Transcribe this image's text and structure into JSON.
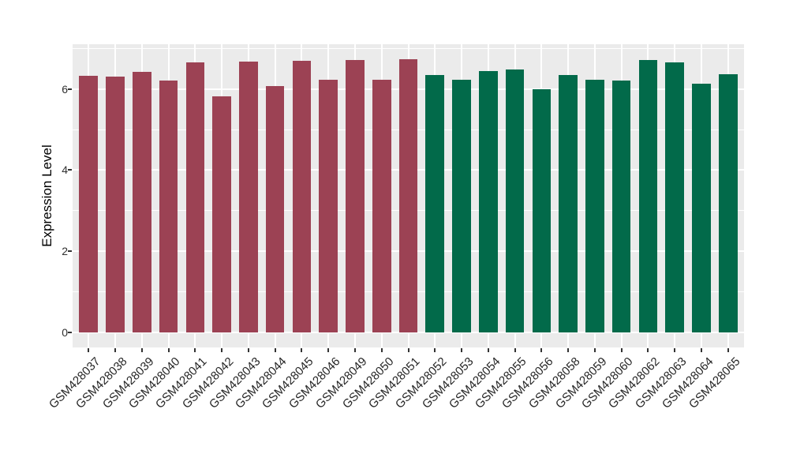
{
  "figure": {
    "background": "#FFFFFF"
  },
  "y_axis": {
    "label": "Expression Level",
    "tick_labels": [
      "0",
      "2",
      "4",
      "6"
    ]
  },
  "chart_data": {
    "type": "bar",
    "title": "",
    "xlabel": "",
    "ylabel": "Expression Level",
    "categories": [
      "GSM428037",
      "GSM428038",
      "GSM428039",
      "GSM428040",
      "GSM428041",
      "GSM428042",
      "GSM428043",
      "GSM428044",
      "GSM428045",
      "GSM428046",
      "GSM428049",
      "GSM428050",
      "GSM428051",
      "GSM428052",
      "GSM428053",
      "GSM428054",
      "GSM428055",
      "GSM428056",
      "GSM428058",
      "GSM428059",
      "GSM428060",
      "GSM428062",
      "GSM428063",
      "GSM428064",
      "GSM428065"
    ],
    "values": [
      6.33,
      6.31,
      6.42,
      6.2,
      6.65,
      5.82,
      6.67,
      6.07,
      6.7,
      6.23,
      6.72,
      6.23,
      6.74,
      6.34,
      6.23,
      6.45,
      6.48,
      5.99,
      6.34,
      6.22,
      6.2,
      6.71,
      6.66,
      6.12,
      6.36
    ],
    "group_of_bar": [
      0,
      0,
      0,
      0,
      0,
      0,
      0,
      0,
      0,
      0,
      0,
      0,
      0,
      1,
      1,
      1,
      1,
      1,
      1,
      1,
      1,
      1,
      1,
      1,
      1
    ],
    "series": [
      {
        "name": "group-1-maroon",
        "color": "#9C4254"
      },
      {
        "name": "group-2-green",
        "color": "#026A4A"
      }
    ],
    "yticks": [
      0,
      2,
      4,
      6
    ],
    "yticks_minor": [
      1,
      3,
      5,
      7
    ],
    "ylim": [
      -0.37,
      7.1
    ],
    "grid": "on",
    "legend_position": "none",
    "panel_background": "#EBEBEB",
    "grid_color": "#FFFFFF",
    "axis_text_color": "#262626"
  }
}
